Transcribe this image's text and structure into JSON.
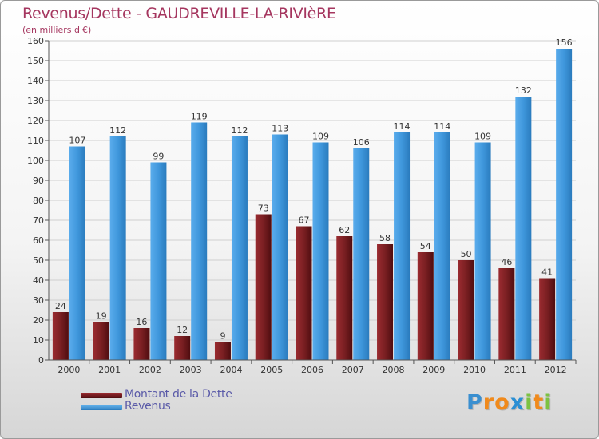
{
  "chart_data": {
    "type": "bar",
    "title": "Revenus/Dette - GAUDREVILLE-LA-RIVIèRE",
    "subtitle": "(en milliers d'€)",
    "xlabel": "",
    "ylabel": "",
    "ylim": [
      0,
      160
    ],
    "yticks": [
      0,
      10,
      20,
      30,
      40,
      50,
      60,
      70,
      80,
      90,
      100,
      110,
      120,
      130,
      140,
      150,
      160
    ],
    "grid": true,
    "legend_position": "bottom-left",
    "categories": [
      "2000",
      "2001",
      "2002",
      "2003",
      "2004",
      "2005",
      "2006",
      "2007",
      "2008",
      "2009",
      "2010",
      "2011",
      "2012"
    ],
    "series": [
      {
        "name": "Montant de la Dette",
        "color": "#7a1f22",
        "values": [
          24,
          19,
          16,
          12,
          9,
          73,
          67,
          62,
          58,
          54,
          50,
          46,
          41
        ]
      },
      {
        "name": "Revenus",
        "color": "#3f97dc",
        "values": [
          107,
          112,
          99,
          119,
          112,
          113,
          109,
          106,
          114,
          114,
          109,
          132,
          156
        ]
      }
    ]
  },
  "logo": {
    "text": [
      "P",
      "r",
      "o",
      "x",
      "i",
      "t",
      "i"
    ],
    "colors": [
      "#3a8fd0",
      "#f08a1c",
      "#f08a1c",
      "#2a8fd4",
      "#7cc242",
      "#f08a1c",
      "#7cc242"
    ]
  }
}
